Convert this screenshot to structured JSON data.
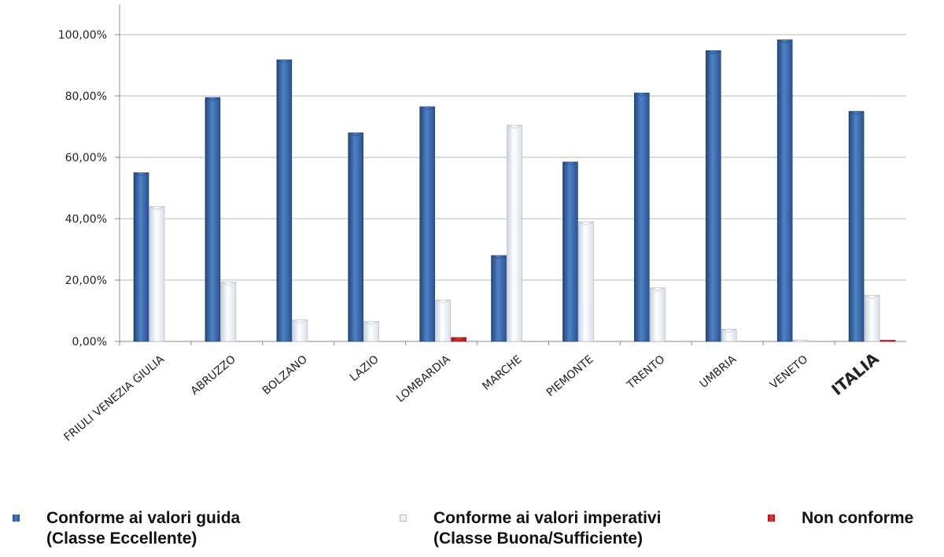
{
  "chart_data": {
    "type": "bar",
    "categories": [
      "FRIULI VENEZIA GIULIA",
      "ABRUZZO",
      "BOLZANO",
      "LAZIO",
      "LOMBARDIA",
      "MARCHE",
      "PIEMONTE",
      "TRENTO",
      "UMBRIA",
      "VENETO",
      "ITALIA"
    ],
    "series": [
      {
        "name": "Conforme ai valori guida (Classe Eccellente)",
        "color": "#3a68a8",
        "values": [
          55.0,
          79.5,
          91.8,
          68.0,
          76.5,
          28.0,
          58.5,
          81.0,
          94.8,
          98.3,
          75.0
        ]
      },
      {
        "name": "Conforme ai valori imperativi (Classe Buona/Sufficiente)",
        "color": "#e9eef6",
        "values": [
          44.0,
          19.3,
          7.0,
          6.5,
          13.5,
          70.5,
          39.0,
          17.5,
          4.0,
          0.5,
          15.0
        ]
      },
      {
        "name": "Non conforme",
        "color": "#d42a2a",
        "values": [
          0,
          0,
          0,
          0,
          1.3,
          0,
          0,
          0,
          0,
          0,
          0.4
        ]
      }
    ],
    "y_ticks": [
      "0,00%",
      "20,00%",
      "40,00%",
      "60,00%",
      "80,00%",
      "100,00%"
    ],
    "ylim": [
      0,
      110
    ],
    "grid": true,
    "emphasized_category": "ITALIA",
    "legend_position": "bottom"
  },
  "legend": [
    {
      "line1": "Conforme ai valori guida",
      "line2": "(Classe Eccellente)"
    },
    {
      "line1": "Conforme ai valori imperativi",
      "line2": "(Classe Buona/Sufficiente)"
    },
    {
      "line1": "Non conforme",
      "line2": ""
    }
  ]
}
